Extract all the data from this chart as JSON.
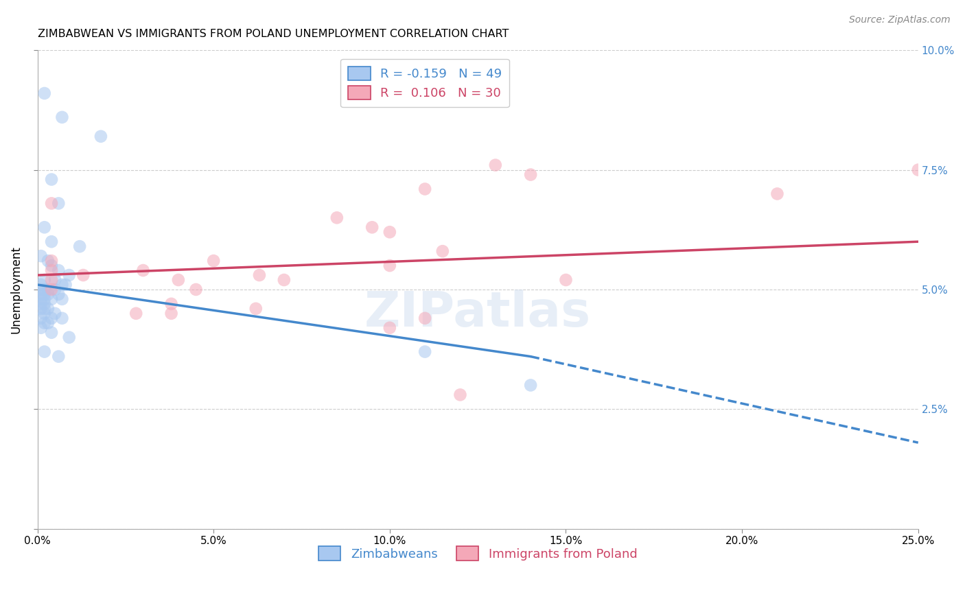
{
  "title": "ZIMBABWEAN VS IMMIGRANTS FROM POLAND UNEMPLOYMENT CORRELATION CHART",
  "source": "Source: ZipAtlas.com",
  "ylabel": "Unemployment",
  "xlim": [
    0,
    0.25
  ],
  "ylim": [
    0,
    0.1
  ],
  "xticks": [
    0.0,
    0.05,
    0.1,
    0.15,
    0.2,
    0.25
  ],
  "yticks": [
    0.0,
    0.025,
    0.05,
    0.075,
    0.1
  ],
  "xtick_labels": [
    "0.0%",
    "5.0%",
    "10.0%",
    "15.0%",
    "20.0%",
    "25.0%"
  ],
  "ytick_labels_right": [
    "",
    "2.5%",
    "5.0%",
    "7.5%",
    "10.0%"
  ],
  "legend_label1": "Zimbabweans",
  "legend_label2": "Immigrants from Poland",
  "blue_R": -0.159,
  "blue_N": 49,
  "pink_R": 0.106,
  "pink_N": 30,
  "blue_color": "#a8c8f0",
  "pink_color": "#f4a8b8",
  "blue_line_color": "#4488cc",
  "pink_line_color": "#cc4466",
  "blue_scatter": [
    [
      0.002,
      0.091
    ],
    [
      0.007,
      0.086
    ],
    [
      0.018,
      0.082
    ],
    [
      0.004,
      0.073
    ],
    [
      0.006,
      0.068
    ],
    [
      0.002,
      0.063
    ],
    [
      0.004,
      0.06
    ],
    [
      0.012,
      0.059
    ],
    [
      0.001,
      0.057
    ],
    [
      0.003,
      0.056
    ],
    [
      0.004,
      0.055
    ],
    [
      0.006,
      0.054
    ],
    [
      0.009,
      0.053
    ],
    [
      0.002,
      0.052
    ],
    [
      0.005,
      0.052
    ],
    [
      0.007,
      0.051
    ],
    [
      0.008,
      0.051
    ],
    [
      0.001,
      0.051
    ],
    [
      0.002,
      0.05
    ],
    [
      0.003,
      0.05
    ],
    [
      0.005,
      0.05
    ],
    [
      0.001,
      0.05
    ],
    [
      0.002,
      0.049
    ],
    [
      0.003,
      0.049
    ],
    [
      0.006,
      0.049
    ],
    [
      0.001,
      0.049
    ],
    [
      0.002,
      0.048
    ],
    [
      0.004,
      0.048
    ],
    [
      0.007,
      0.048
    ],
    [
      0.001,
      0.048
    ],
    [
      0.002,
      0.047
    ],
    [
      0.001,
      0.047
    ],
    [
      0.002,
      0.046
    ],
    [
      0.003,
      0.046
    ],
    [
      0.001,
      0.046
    ],
    [
      0.002,
      0.045
    ],
    [
      0.005,
      0.045
    ],
    [
      0.001,
      0.044
    ],
    [
      0.004,
      0.044
    ],
    [
      0.007,
      0.044
    ],
    [
      0.002,
      0.043
    ],
    [
      0.003,
      0.043
    ],
    [
      0.001,
      0.042
    ],
    [
      0.004,
      0.041
    ],
    [
      0.009,
      0.04
    ],
    [
      0.002,
      0.037
    ],
    [
      0.006,
      0.036
    ],
    [
      0.11,
      0.037
    ],
    [
      0.14,
      0.03
    ]
  ],
  "pink_scatter": [
    [
      0.004,
      0.068
    ],
    [
      0.13,
      0.076
    ],
    [
      0.14,
      0.074
    ],
    [
      0.11,
      0.071
    ],
    [
      0.21,
      0.07
    ],
    [
      0.085,
      0.065
    ],
    [
      0.095,
      0.063
    ],
    [
      0.1,
      0.062
    ],
    [
      0.115,
      0.058
    ],
    [
      0.004,
      0.056
    ],
    [
      0.05,
      0.056
    ],
    [
      0.1,
      0.055
    ],
    [
      0.004,
      0.054
    ],
    [
      0.03,
      0.054
    ],
    [
      0.013,
      0.053
    ],
    [
      0.063,
      0.053
    ],
    [
      0.004,
      0.052
    ],
    [
      0.04,
      0.052
    ],
    [
      0.07,
      0.052
    ],
    [
      0.15,
      0.052
    ],
    [
      0.004,
      0.05
    ],
    [
      0.045,
      0.05
    ],
    [
      0.038,
      0.047
    ],
    [
      0.062,
      0.046
    ],
    [
      0.028,
      0.045
    ],
    [
      0.038,
      0.045
    ],
    [
      0.11,
      0.044
    ],
    [
      0.1,
      0.042
    ],
    [
      0.12,
      0.028
    ],
    [
      0.25,
      0.075
    ]
  ],
  "background_color": "#ffffff",
  "grid_color": "#cccccc",
  "watermark": "ZIPatlas",
  "blue_line_x0": 0.0,
  "blue_line_x_solid_end": 0.14,
  "blue_line_x1": 0.25,
  "blue_line_y0": 0.051,
  "blue_line_y_solid_end": 0.036,
  "blue_line_y1": 0.018,
  "pink_line_x0": 0.0,
  "pink_line_x1": 0.25,
  "pink_line_y0": 0.053,
  "pink_line_y1": 0.06
}
